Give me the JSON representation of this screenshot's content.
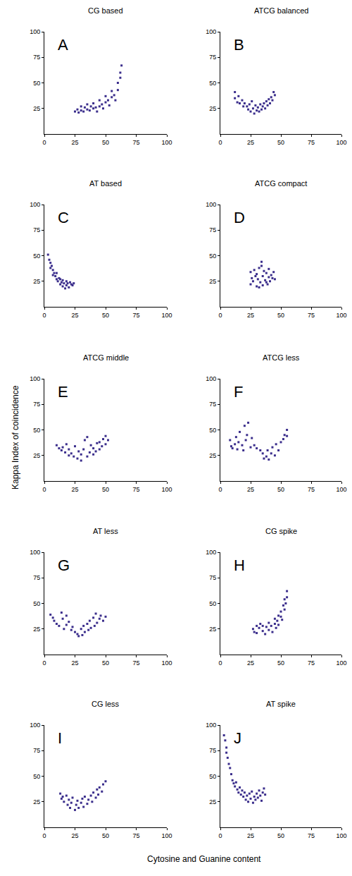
{
  "x_label": "Cytosine and Guanine content",
  "y_label": "Kappa Index of coincidence",
  "chart_data": [
    {
      "type": "scatter",
      "title": "CG based",
      "annotation": "A",
      "color": "#3b2e8c",
      "marker": "square",
      "x": [
        25,
        27,
        28,
        30,
        30,
        32,
        33,
        35,
        35,
        37,
        38,
        40,
        40,
        42,
        43,
        45,
        45,
        47,
        48,
        50,
        50,
        52,
        53,
        55,
        55,
        57,
        58,
        60,
        60,
        62,
        62,
        63
      ],
      "y": [
        22,
        24,
        21,
        23,
        27,
        22,
        26,
        24,
        29,
        23,
        27,
        25,
        30,
        26,
        22,
        27,
        33,
        29,
        25,
        31,
        37,
        33,
        28,
        36,
        42,
        38,
        33,
        43,
        50,
        55,
        60,
        67
      ],
      "xlim": [
        0,
        100
      ],
      "ylim": [
        0,
        100
      ],
      "xticks": [
        0,
        25,
        50,
        75,
        100
      ],
      "yticks": [
        25,
        50,
        75,
        100
      ]
    },
    {
      "type": "scatter",
      "title": "ATCG balanced",
      "annotation": "B",
      "color": "#3b2e8c",
      "marker": "square",
      "x": [
        12,
        12,
        14,
        15,
        16,
        18,
        19,
        20,
        22,
        23,
        24,
        25,
        26,
        27,
        28,
        29,
        30,
        31,
        32,
        33,
        34,
        35,
        36,
        37,
        38,
        39,
        40,
        41,
        42,
        43,
        44,
        45
      ],
      "y": [
        35,
        41,
        31,
        37,
        30,
        33,
        27,
        30,
        27,
        24,
        29,
        22,
        32,
        25,
        20,
        28,
        23,
        26,
        22,
        29,
        24,
        27,
        30,
        25,
        32,
        28,
        34,
        30,
        36,
        33,
        41,
        38
      ],
      "xlim": [
        0,
        100
      ],
      "ylim": [
        0,
        100
      ],
      "xticks": [
        0,
        25,
        50,
        75,
        100
      ],
      "yticks": [
        25,
        50,
        75,
        100
      ]
    },
    {
      "type": "scatter",
      "title": "AT based",
      "annotation": "C",
      "color": "#3b2e8c",
      "marker": "square",
      "x": [
        3,
        4,
        5,
        5,
        6,
        7,
        7,
        8,
        9,
        10,
        10,
        11,
        12,
        13,
        13,
        14,
        15,
        15,
        16,
        17,
        18,
        18,
        19,
        20,
        21,
        22,
        23,
        24
      ],
      "y": [
        51,
        46,
        43,
        38,
        40,
        36,
        31,
        33,
        30,
        27,
        33,
        25,
        28,
        22,
        27,
        24,
        20,
        26,
        23,
        18,
        25,
        21,
        23,
        19,
        24,
        22,
        21,
        23
      ],
      "xlim": [
        0,
        100
      ],
      "ylim": [
        0,
        100
      ],
      "xticks": [
        0,
        25,
        50,
        75,
        100
      ],
      "yticks": [
        25,
        50,
        75,
        100
      ]
    },
    {
      "type": "scatter",
      "title": "ATCG compact",
      "annotation": "D",
      "color": "#3b2e8c",
      "marker": "square",
      "x": [
        25,
        25,
        26,
        27,
        28,
        29,
        30,
        30,
        31,
        32,
        33,
        34,
        35,
        35,
        36,
        37,
        38,
        39,
        40,
        40,
        41,
        42,
        43,
        44,
        45,
        32,
        34,
        38
      ],
      "y": [
        22,
        34,
        28,
        25,
        36,
        30,
        20,
        32,
        27,
        38,
        24,
        44,
        21,
        30,
        35,
        26,
        33,
        22,
        29,
        37,
        25,
        31,
        28,
        34,
        27,
        19,
        40,
        24
      ],
      "xlim": [
        0,
        100
      ],
      "ylim": [
        0,
        100
      ],
      "xticks": [
        0,
        25,
        50,
        75,
        100
      ],
      "yticks": [
        25,
        50,
        75,
        100
      ]
    },
    {
      "type": "scatter",
      "title": "ATCG middle",
      "annotation": "E",
      "color": "#3b2e8c",
      "marker": "square",
      "x": [
        10,
        12,
        14,
        15,
        17,
        18,
        20,
        20,
        22,
        24,
        25,
        27,
        28,
        30,
        30,
        32,
        33,
        35,
        35,
        37,
        38,
        40,
        40,
        42,
        43,
        45,
        45,
        47,
        48,
        50,
        50,
        52
      ],
      "y": [
        35,
        32,
        30,
        33,
        28,
        36,
        25,
        31,
        27,
        24,
        34,
        22,
        29,
        20,
        26,
        31,
        40,
        24,
        43,
        28,
        35,
        26,
        32,
        29,
        37,
        31,
        38,
        34,
        41,
        36,
        44,
        40
      ],
      "xlim": [
        0,
        100
      ],
      "ylim": [
        0,
        100
      ],
      "xticks": [
        0,
        25,
        50,
        75,
        100
      ],
      "yticks": [
        25,
        50,
        75,
        100
      ]
    },
    {
      "type": "scatter",
      "title": "ATCG less",
      "annotation": "F",
      "color": "#3b2e8c",
      "marker": "square",
      "x": [
        8,
        9,
        10,
        12,
        13,
        14,
        15,
        16,
        18,
        19,
        20,
        21,
        22,
        23,
        25,
        26,
        28,
        30,
        33,
        35,
        36,
        38,
        39,
        40,
        42,
        43,
        45,
        46,
        48,
        50,
        52,
        53,
        55,
        55
      ],
      "y": [
        40,
        34,
        32,
        36,
        43,
        31,
        38,
        48,
        35,
        30,
        54,
        40,
        45,
        57,
        33,
        42,
        35,
        32,
        30,
        27,
        22,
        24,
        30,
        21,
        27,
        33,
        25,
        36,
        30,
        38,
        41,
        45,
        44,
        50
      ],
      "xlim": [
        0,
        100
      ],
      "ylim": [
        0,
        100
      ],
      "xticks": [
        0,
        25,
        50,
        75,
        100
      ],
      "yticks": [
        25,
        50,
        75,
        100
      ]
    },
    {
      "type": "scatter",
      "title": "AT less",
      "annotation": "G",
      "color": "#3b2e8c",
      "marker": "square",
      "x": [
        5,
        7,
        8,
        10,
        12,
        14,
        15,
        16,
        18,
        18,
        20,
        22,
        23,
        25,
        27,
        28,
        30,
        31,
        32,
        33,
        35,
        36,
        37,
        38,
        40,
        41,
        42,
        43,
        45,
        46,
        48,
        50
      ],
      "y": [
        39,
        36,
        33,
        30,
        28,
        41,
        35,
        25,
        38,
        29,
        32,
        24,
        27,
        22,
        20,
        18,
        25,
        19,
        28,
        22,
        30,
        24,
        33,
        26,
        36,
        28,
        40,
        31,
        35,
        38,
        33,
        37
      ],
      "xlim": [
        0,
        100
      ],
      "ylim": [
        0,
        100
      ],
      "xticks": [
        0,
        25,
        50,
        75,
        100
      ],
      "yticks": [
        25,
        50,
        75,
        100
      ]
    },
    {
      "type": "scatter",
      "title": "CG spike",
      "annotation": "H",
      "color": "#3b2e8c",
      "marker": "square",
      "x": [
        27,
        28,
        30,
        30,
        32,
        33,
        35,
        35,
        37,
        38,
        40,
        40,
        42,
        43,
        45,
        45,
        46,
        47,
        48,
        48,
        50,
        50,
        51,
        52,
        53,
        53,
        54,
        55,
        55
      ],
      "y": [
        25,
        22,
        28,
        21,
        26,
        30,
        23,
        28,
        20,
        27,
        31,
        24,
        28,
        22,
        30,
        35,
        26,
        33,
        38,
        29,
        37,
        42,
        34,
        48,
        44,
        54,
        50,
        56,
        62
      ],
      "xlim": [
        0,
        100
      ],
      "ylim": [
        0,
        100
      ],
      "xticks": [
        0,
        25,
        50,
        75,
        100
      ],
      "yticks": [
        25,
        50,
        75,
        100
      ]
    },
    {
      "type": "scatter",
      "title": "CG less",
      "annotation": "I",
      "color": "#3b2e8c",
      "marker": "square",
      "x": [
        13,
        14,
        15,
        16,
        18,
        19,
        20,
        21,
        22,
        23,
        25,
        26,
        27,
        28,
        30,
        31,
        32,
        33,
        35,
        36,
        38,
        39,
        40,
        42,
        43,
        44,
        45,
        47,
        48,
        50
      ],
      "y": [
        33,
        28,
        30,
        25,
        31,
        22,
        27,
        19,
        24,
        29,
        17,
        22,
        26,
        19,
        24,
        28,
        20,
        30,
        23,
        27,
        31,
        25,
        34,
        29,
        37,
        32,
        39,
        35,
        42,
        45
      ],
      "xlim": [
        0,
        100
      ],
      "ylim": [
        0,
        100
      ],
      "xticks": [
        0,
        25,
        50,
        75,
        100
      ],
      "yticks": [
        25,
        50,
        75,
        100
      ]
    },
    {
      "type": "scatter",
      "title": "AT spike",
      "annotation": "J",
      "color": "#3b2e8c",
      "marker": "square",
      "x": [
        3,
        4,
        5,
        5,
        6,
        7,
        8,
        9,
        10,
        11,
        12,
        13,
        14,
        15,
        16,
        17,
        18,
        19,
        20,
        21,
        22,
        23,
        24,
        25,
        26,
        27,
        28,
        29,
        30,
        31,
        32,
        33,
        34,
        35,
        36,
        37
      ],
      "y": [
        90,
        85,
        78,
        73,
        68,
        62,
        58,
        52,
        46,
        43,
        40,
        44,
        37,
        34,
        39,
        32,
        36,
        30,
        34,
        27,
        31,
        25,
        33,
        28,
        35,
        24,
        30,
        27,
        33,
        29,
        36,
        31,
        26,
        34,
        38,
        32
      ],
      "xlim": [
        0,
        100
      ],
      "ylim": [
        0,
        100
      ],
      "xticks": [
        0,
        25,
        50,
        75,
        100
      ],
      "yticks": [
        25,
        50,
        75,
        100
      ]
    }
  ]
}
